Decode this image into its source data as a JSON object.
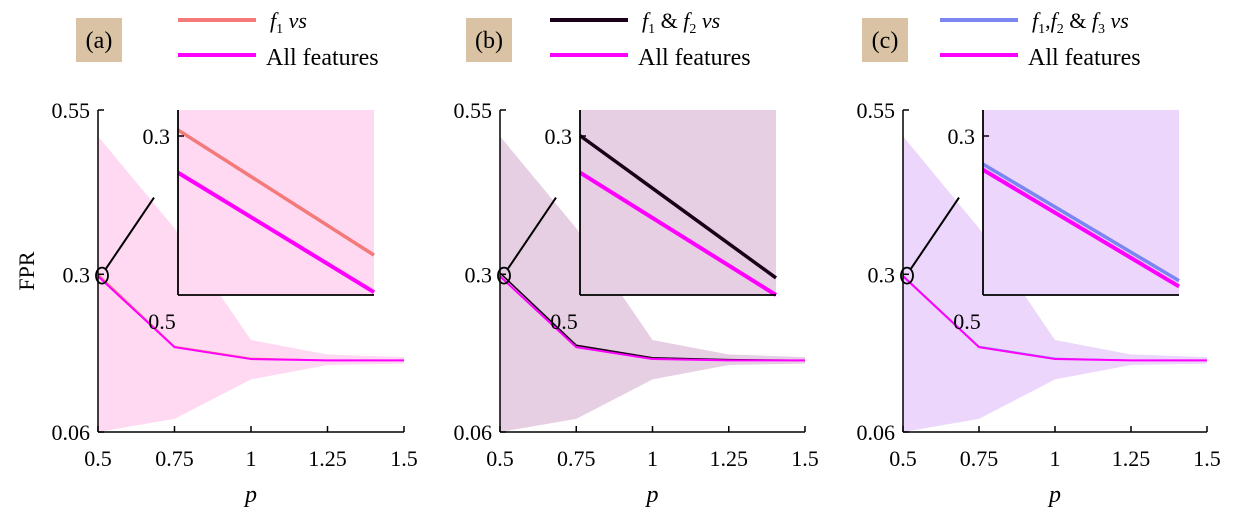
{
  "figure": {
    "ylabel": "FPR",
    "xlabel": "p"
  },
  "colors": {
    "all_features": "#ff00ff",
    "f1": "#f47a7a",
    "f1f2": "#1a0018",
    "f1f2f3": "#7b86f0",
    "band_a": "#ffd9f2",
    "band_b": "#e6cfe3",
    "band_c": "#ecd6fb",
    "panel_label_bg": "#d9c3a4"
  },
  "chart_data": [
    {
      "type": "line",
      "panel_label": "(a)",
      "legend": [
        {
          "italic_name": "f",
          "sub": "1",
          "suffix": " vs",
          "color_key": "f1"
        },
        {
          "label": "All features",
          "color_key": "all_features"
        }
      ],
      "xticks": [
        "0.5",
        "0.75",
        "1",
        "1.25",
        "1.5"
      ],
      "yticks": [
        "0.55",
        "0.3",
        "0.06"
      ],
      "xlim": [
        0.5,
        1.5
      ],
      "ylim": [
        0.06,
        0.55
      ],
      "x": [
        0.5,
        0.75,
        1.0,
        1.25,
        1.5
      ],
      "series": [
        {
          "color_key": "f1",
          "values": [
            0.3,
            0.19,
            0.172,
            0.169,
            0.169
          ]
        },
        {
          "color_key": "all_features",
          "values": [
            0.297,
            0.189,
            0.171,
            0.169,
            0.169
          ]
        }
      ],
      "band": {
        "upper": [
          0.51,
          0.37,
          0.2,
          0.178,
          0.174
        ],
        "lower": [
          0.06,
          0.08,
          0.14,
          0.162,
          0.164
        ],
        "color_key": "band_a"
      },
      "inset": {
        "ytick": "0.3",
        "xtick": "0.5",
        "series": [
          {
            "color_key": "f1",
            "start": 0.283,
            "end": 0.239
          },
          {
            "color_key": "all_features",
            "start": 0.268,
            "end": 0.226
          }
        ],
        "ylim": [
          0.225,
          0.29
        ],
        "band_color_key": "band_a"
      }
    },
    {
      "type": "line",
      "panel_label": "(b)",
      "legend": [
        {
          "italic_name": "f",
          "sub": "1",
          "mid": " & ",
          "italic_name2": "f",
          "sub2": "2",
          "suffix": " vs",
          "color_key": "f1f2"
        },
        {
          "label": "All features",
          "color_key": "all_features"
        }
      ],
      "xticks": [
        "0.5",
        "0.75",
        "1",
        "1.25",
        "1.5"
      ],
      "yticks": [
        "0.55",
        "0.3",
        "0.06"
      ],
      "xlim": [
        0.5,
        1.5
      ],
      "ylim": [
        0.06,
        0.55
      ],
      "x": [
        0.5,
        0.75,
        1.0,
        1.25,
        1.5
      ],
      "series": [
        {
          "color_key": "f1f2",
          "values": [
            0.302,
            0.192,
            0.173,
            0.17,
            0.169
          ]
        },
        {
          "color_key": "all_features",
          "values": [
            0.297,
            0.189,
            0.171,
            0.169,
            0.169
          ]
        }
      ],
      "band": {
        "upper": [
          0.51,
          0.37,
          0.2,
          0.178,
          0.174
        ],
        "lower": [
          0.06,
          0.08,
          0.14,
          0.162,
          0.164
        ],
        "color_key": "band_b"
      },
      "inset": {
        "ytick": "0.3",
        "xtick": "0.5",
        "series": [
          {
            "color_key": "f1f2",
            "start": 0.281,
            "end": 0.231
          },
          {
            "color_key": "all_features",
            "start": 0.268,
            "end": 0.225
          }
        ],
        "ylim": [
          0.225,
          0.29
        ],
        "band_color_key": "band_b"
      }
    },
    {
      "type": "line",
      "panel_label": "(c)",
      "legend": [
        {
          "italic_name": "f",
          "sub": "1",
          "mid": ",",
          "italic_name2": "f",
          "sub2": "2",
          "mid2": " & ",
          "italic_name3": "f",
          "sub3": "3",
          "suffix": " vs",
          "color_key": "f1f2f3"
        },
        {
          "label": "All features",
          "color_key": "all_features"
        }
      ],
      "xticks": [
        "0.5",
        "0.75",
        "1",
        "1.25",
        "1.5"
      ],
      "yticks": [
        "0.55",
        "0.3",
        "0.06"
      ],
      "xlim": [
        0.5,
        1.5
      ],
      "ylim": [
        0.06,
        0.55
      ],
      "x": [
        0.5,
        0.75,
        1.0,
        1.25,
        1.5
      ],
      "series": [
        {
          "color_key": "f1f2f3",
          "values": [
            0.298,
            0.19,
            0.172,
            0.169,
            0.169
          ]
        },
        {
          "color_key": "all_features",
          "values": [
            0.297,
            0.189,
            0.171,
            0.169,
            0.169
          ]
        }
      ],
      "band": {
        "upper": [
          0.51,
          0.37,
          0.2,
          0.178,
          0.174
        ],
        "lower": [
          0.06,
          0.08,
          0.14,
          0.162,
          0.164
        ],
        "color_key": "band_c"
      },
      "inset": {
        "ytick": "0.3",
        "xtick": "0.5",
        "series": [
          {
            "color_key": "f1f2f3",
            "start": 0.271,
            "end": 0.23
          },
          {
            "color_key": "all_features",
            "start": 0.269,
            "end": 0.228
          }
        ],
        "ylim": [
          0.225,
          0.29
        ],
        "band_color_key": "band_c"
      }
    }
  ]
}
